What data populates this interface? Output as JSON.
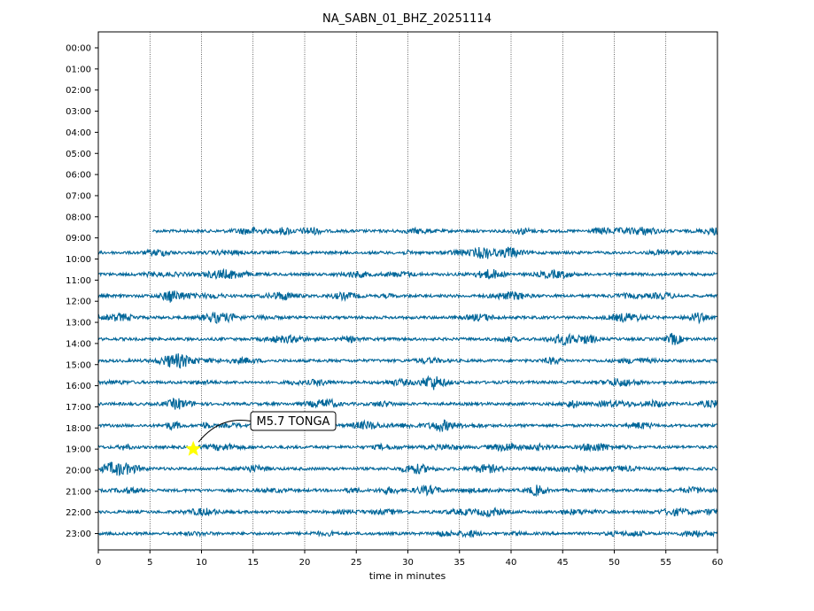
{
  "chart_data": {
    "type": "line",
    "title": "NA_SABN_01_BHZ_20251114",
    "xlabel": "time in minutes",
    "ylabel": "",
    "xlim": [
      0,
      60
    ],
    "x_ticks": [
      0,
      5,
      10,
      15,
      20,
      25,
      30,
      35,
      40,
      45,
      50,
      55,
      60
    ],
    "vgrid_x": [
      5,
      10,
      15,
      20,
      25,
      30,
      35,
      40,
      45,
      50,
      55
    ],
    "y_ticks": [
      "00:00",
      "01:00",
      "02:00",
      "03:00",
      "04:00",
      "05:00",
      "06:00",
      "07:00",
      "08:00",
      "09:00",
      "10:00",
      "11:00",
      "12:00",
      "13:00",
      "14:00",
      "15:00",
      "16:00",
      "17:00",
      "18:00",
      "19:00",
      "20:00",
      "21:00",
      "22:00",
      "23:00"
    ],
    "trace_color": "#006699",
    "traces": [
      {
        "hour": "09:00",
        "start_min": 5.3,
        "end_min": 60
      },
      {
        "hour": "10:00",
        "start_min": 0,
        "end_min": 60
      },
      {
        "hour": "11:00",
        "start_min": 0,
        "end_min": 60
      },
      {
        "hour": "12:00",
        "start_min": 0,
        "end_min": 60
      },
      {
        "hour": "13:00",
        "start_min": 0,
        "end_min": 60
      },
      {
        "hour": "14:00",
        "start_min": 0,
        "end_min": 60
      },
      {
        "hour": "15:00",
        "start_min": 0,
        "end_min": 60
      },
      {
        "hour": "16:00",
        "start_min": 0,
        "end_min": 60
      },
      {
        "hour": "17:00",
        "start_min": 0,
        "end_min": 60
      },
      {
        "hour": "18:00",
        "start_min": 0,
        "end_min": 60
      },
      {
        "hour": "19:00",
        "start_min": 0,
        "end_min": 60
      },
      {
        "hour": "20:00",
        "start_min": 0,
        "end_min": 60
      },
      {
        "hour": "21:00",
        "start_min": 0,
        "end_min": 60
      },
      {
        "hour": "22:00",
        "start_min": 0,
        "end_min": 60
      },
      {
        "hour": "23:00",
        "start_min": 0,
        "end_min": 60
      }
    ],
    "event": {
      "label": "M5.7 TONGA",
      "hour": "19:00",
      "minute": 9.2,
      "marker_color": "#ffff00"
    },
    "grid": "vertical dotted"
  }
}
